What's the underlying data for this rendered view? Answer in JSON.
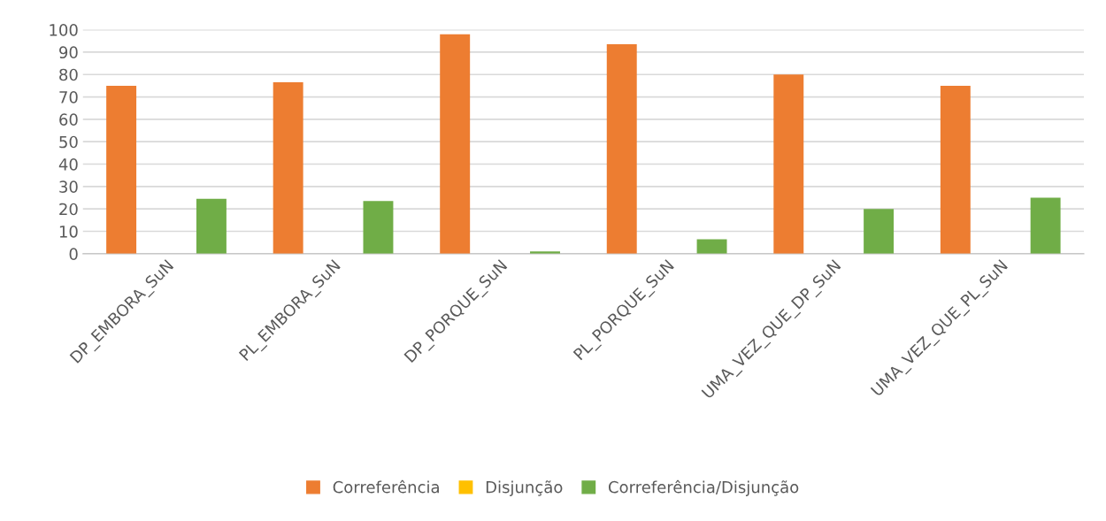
{
  "chart_data": {
    "type": "bar",
    "categories": [
      "DP_EMBORA_SuN",
      "PL_EMBORA_SuN",
      "DP_PORQUE_SuN",
      "PL_PORQUE_SuN",
      "UMA_VEZ_QUE_DP_SuN",
      "UMA_VEZ_QUE_PL_SuN"
    ],
    "series": [
      {
        "name": "Correferência",
        "color": "#ed7d31",
        "values": [
          75,
          76.5,
          98,
          93.5,
          80,
          75
        ]
      },
      {
        "name": "Disjunção",
        "color": "#ffc000",
        "values": [
          0,
          0,
          0,
          0,
          0,
          0
        ]
      },
      {
        "name": "Correferência/Disjunção",
        "color": "#70ad47",
        "values": [
          24.5,
          23.5,
          1,
          6.5,
          20,
          25
        ]
      }
    ],
    "ylim": [
      0,
      100
    ],
    "yticks": [
      0,
      10,
      20,
      30,
      40,
      50,
      60,
      70,
      80,
      90,
      100
    ],
    "grid": "y",
    "legend": "bottom"
  }
}
